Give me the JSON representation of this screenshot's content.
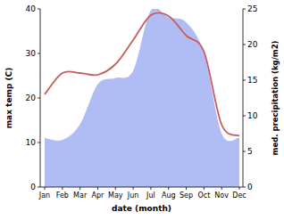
{
  "chart_data": {
    "type": "line",
    "x_label": "date (month)",
    "y_label": "max temp (C)",
    "y2_label": "med. precipitation (kg/m2)",
    "categories": [
      "Jan",
      "Feb",
      "Mar",
      "Apr",
      "May",
      "Jun",
      "Jul",
      "Aug",
      "Sep",
      "Oct",
      "Nov",
      "Dec"
    ],
    "ylim": [
      0,
      40
    ],
    "yticks": [
      0,
      10,
      20,
      30,
      40
    ],
    "y2lim": [
      0,
      25
    ],
    "y2ticks": [
      0,
      5,
      10,
      15,
      20,
      25
    ],
    "series": [
      {
        "type": "area",
        "axis": "y2",
        "color": "#b0bdf5",
        "values": [
          6.9,
          6.6,
          8.8,
          14.4,
          15.3,
          16.3,
          24.8,
          23.8,
          23.1,
          18.8,
          7.5,
          6.9
        ]
      },
      {
        "type": "line",
        "axis": "y",
        "color": "#c85a5a",
        "values": [
          20.8,
          25.6,
          25.6,
          25.2,
          27.6,
          33.0,
          38.6,
          38.4,
          34.0,
          30.4,
          14.0,
          11.5
        ]
      }
    ]
  }
}
